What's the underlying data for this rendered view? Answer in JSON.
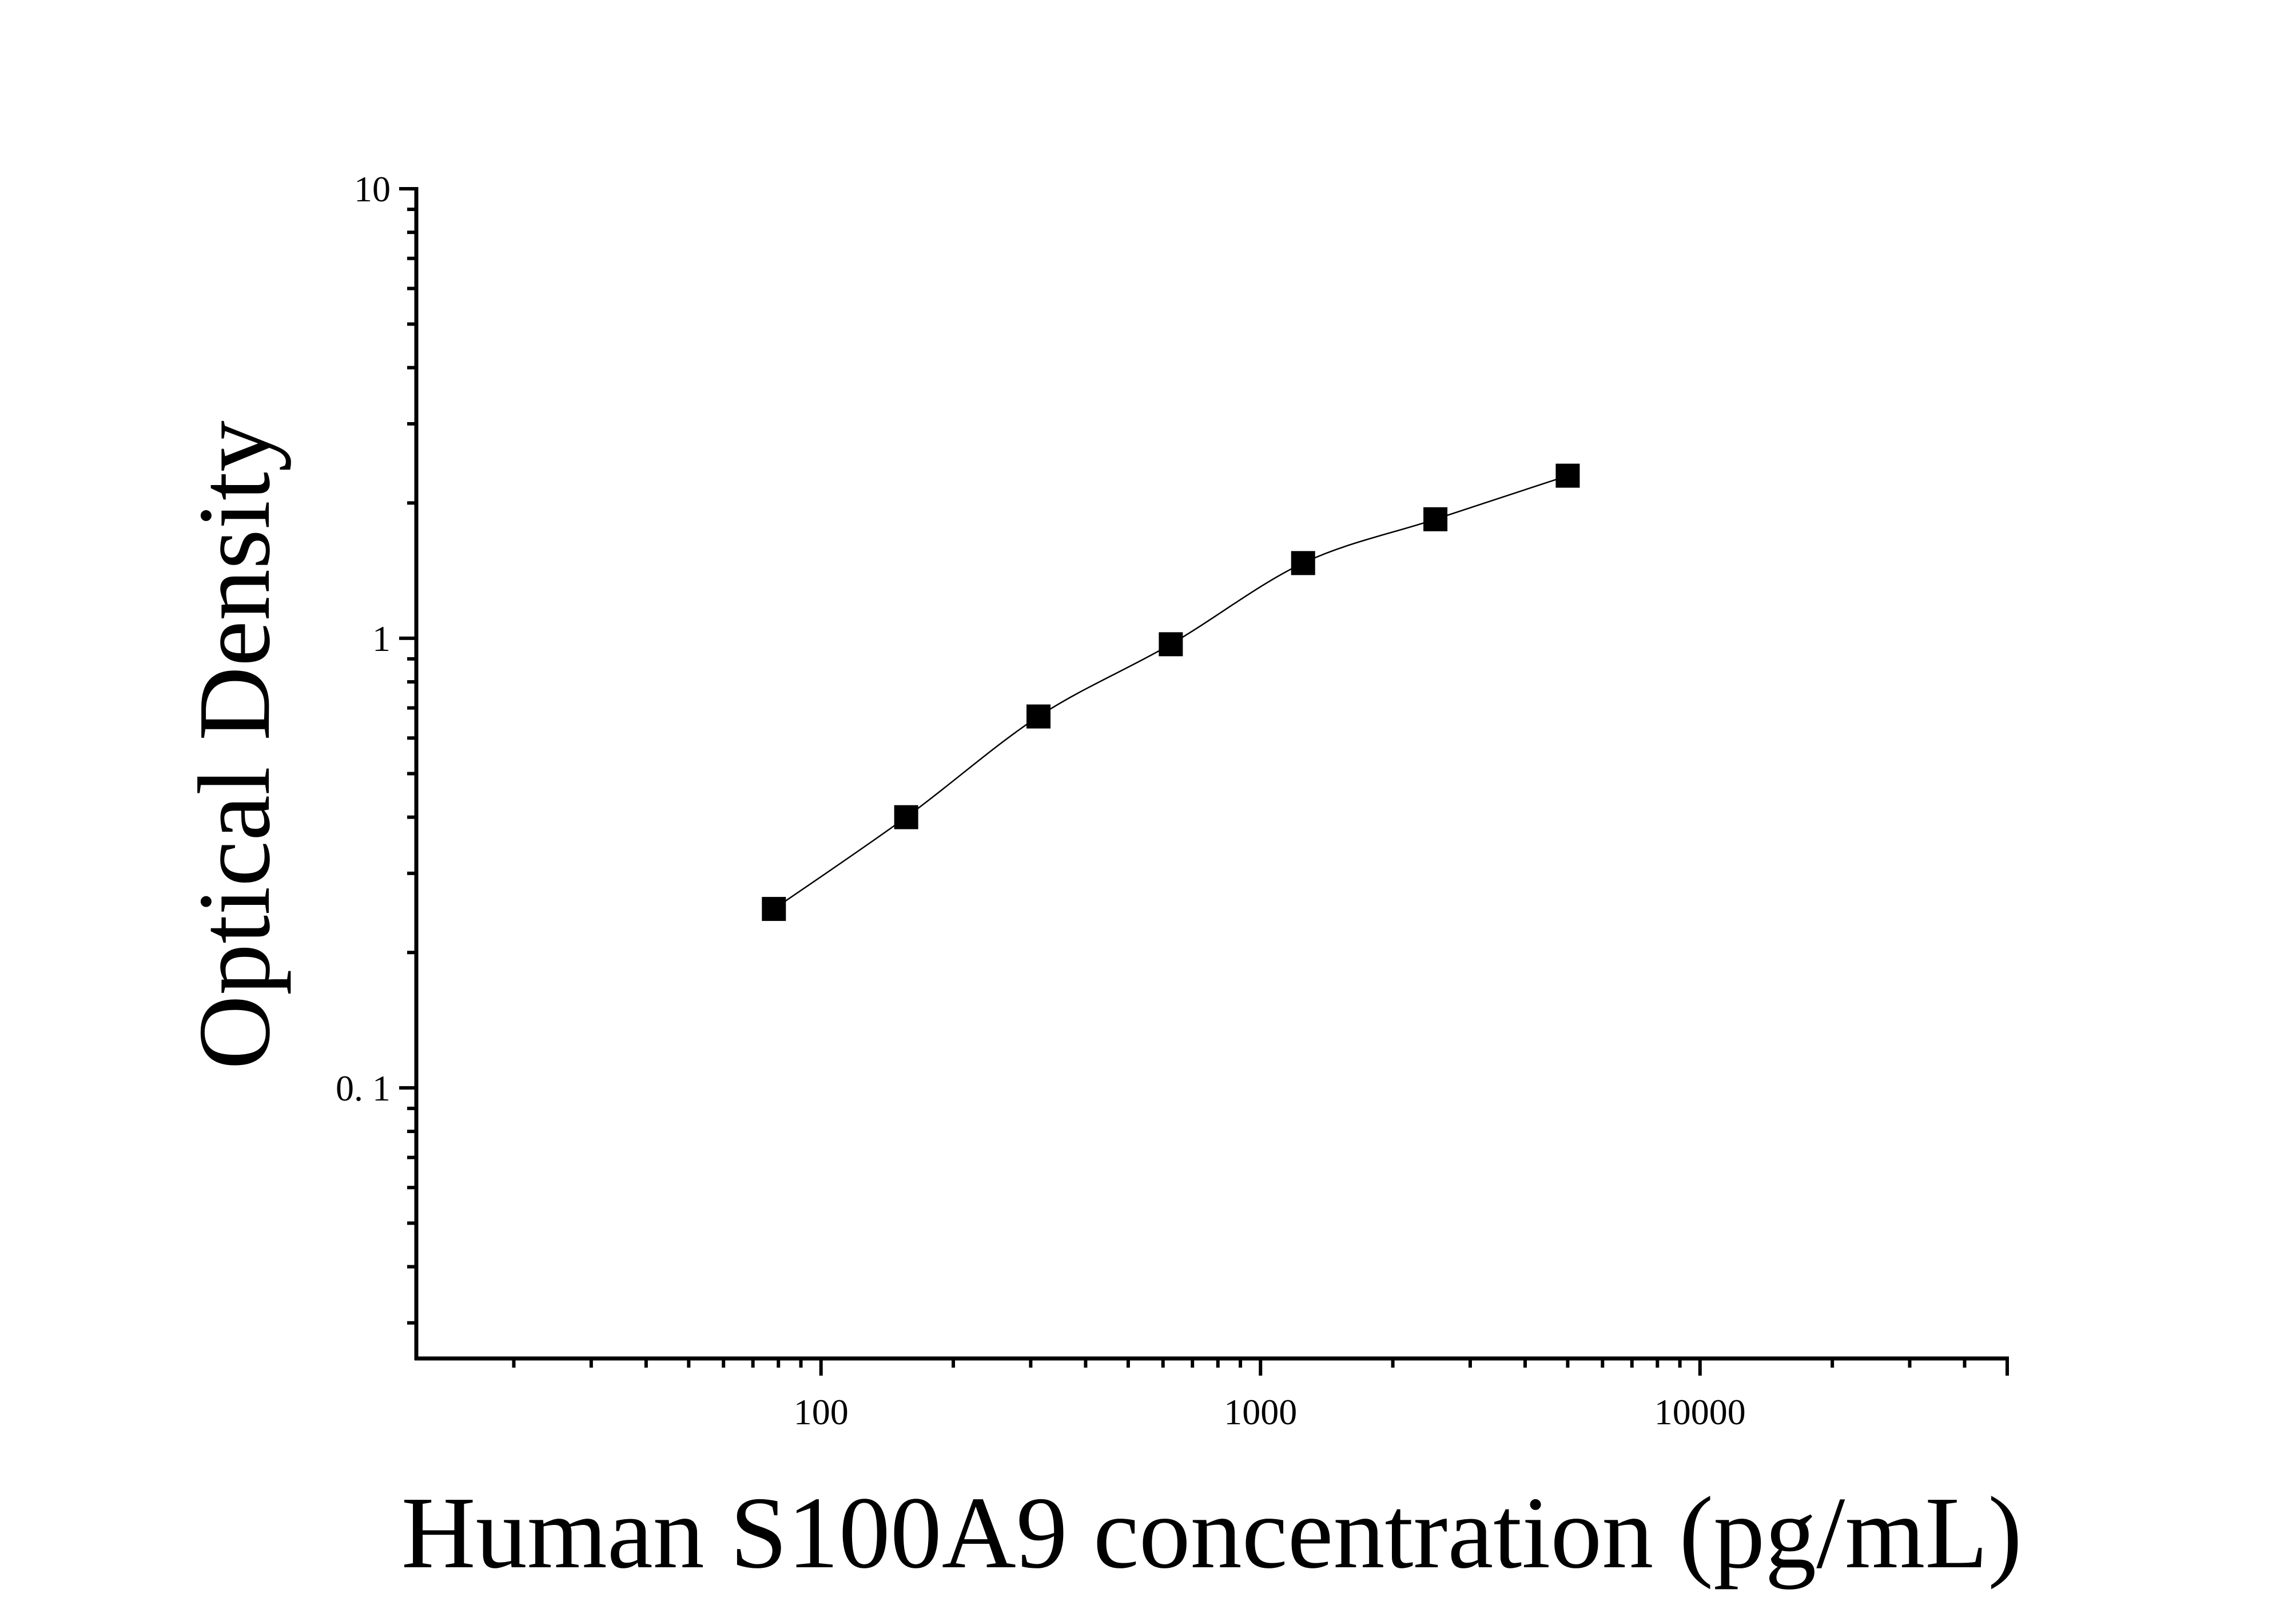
{
  "chart_data": {
    "type": "scatter",
    "xlabel": "Human S100A9 concentration (pg/mL)",
    "ylabel": "Optical Density",
    "x_scale": "log",
    "y_scale": "log",
    "xlim": [
      12,
      50000
    ],
    "ylim": [
      0.025,
      10
    ],
    "x_ticks": [
      {
        "value": 100,
        "label": "100"
      },
      {
        "value": 1000,
        "label": "1000"
      },
      {
        "value": 10000,
        "label": "10000"
      }
    ],
    "y_ticks": [
      {
        "value": 10,
        "label": "10"
      },
      {
        "value": 1,
        "label": "1"
      },
      {
        "value": 0.1,
        "label": "0. 1"
      }
    ],
    "series": [
      {
        "marker": "square",
        "color": "#000000",
        "points": [
          {
            "x": 78.125,
            "y": 0.25
          },
          {
            "x": 156.25,
            "y": 0.4
          },
          {
            "x": 312.5,
            "y": 0.67
          },
          {
            "x": 625,
            "y": 0.97
          },
          {
            "x": 1250,
            "y": 1.47
          },
          {
            "x": 2500,
            "y": 1.84
          },
          {
            "x": 5000,
            "y": 2.3
          }
        ]
      }
    ],
    "fit_curve": true,
    "grid": false,
    "legend": "none"
  }
}
